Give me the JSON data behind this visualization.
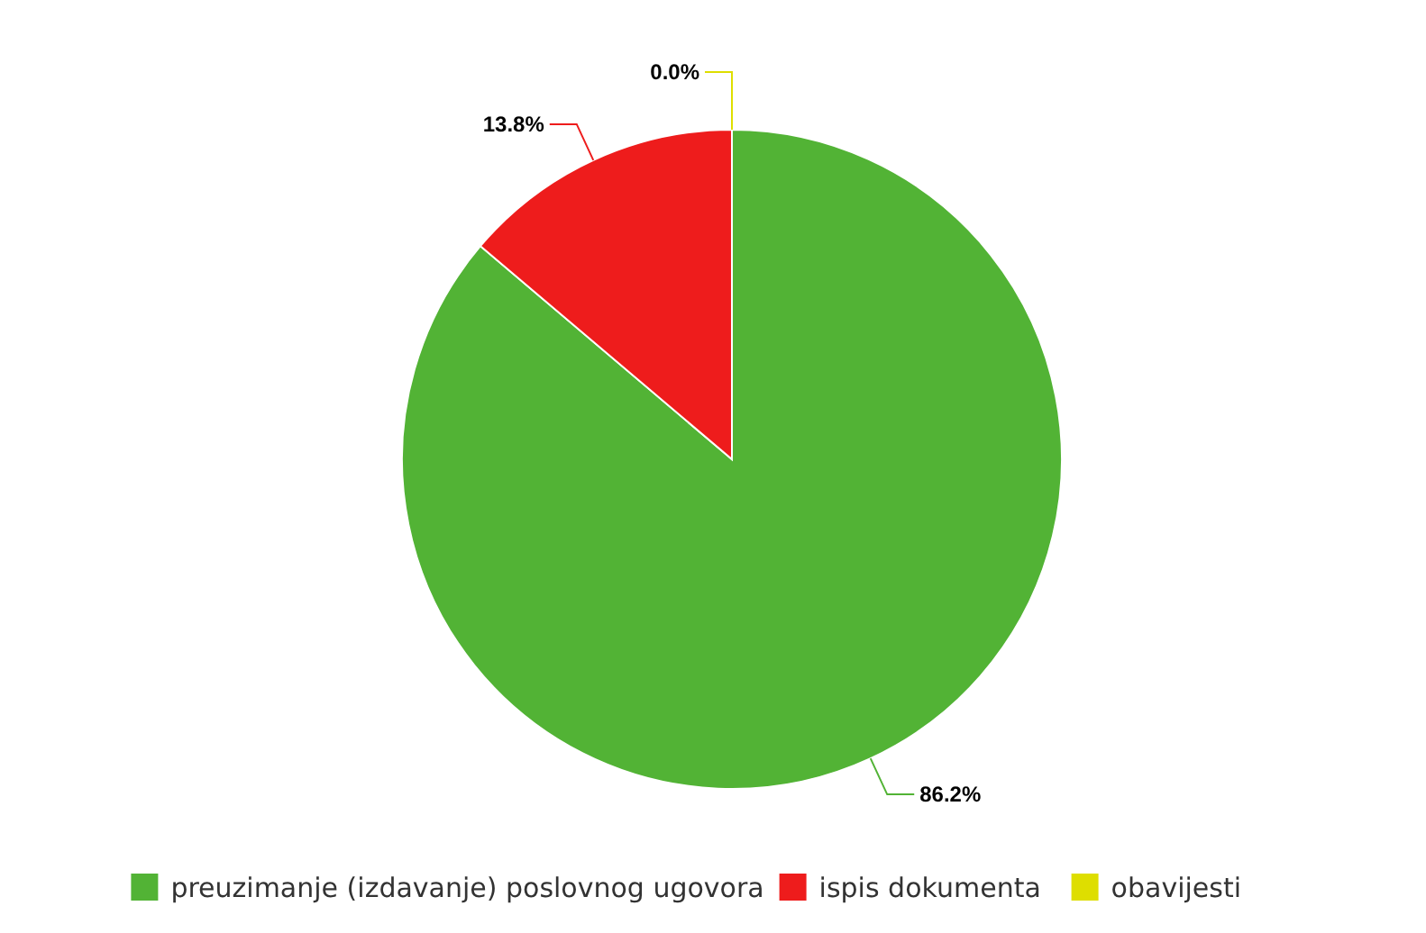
{
  "chart_data": {
    "type": "pie",
    "categories": [
      "preuzimanje (izdavanje) poslovnog ugovora",
      "ispis dokumenta",
      "obavijesti"
    ],
    "values": [
      86.2,
      13.8,
      0.0
    ],
    "colors": [
      "#52b335",
      "#ee1c1c",
      "#dede00"
    ],
    "value_labels": [
      "86.2%",
      "13.8%",
      "0.0%"
    ],
    "legend": "bottom"
  }
}
